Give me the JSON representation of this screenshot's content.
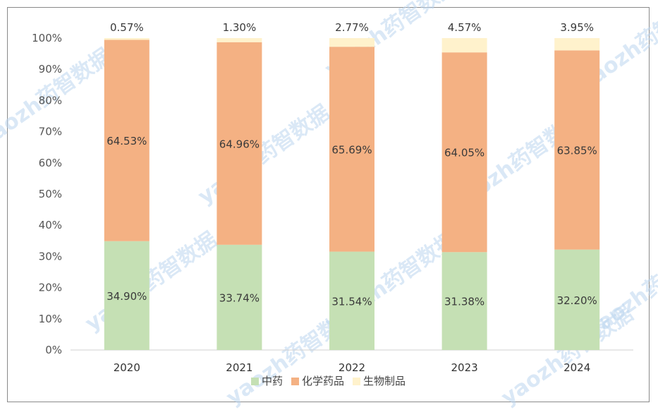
{
  "chart_data": {
    "type": "bar",
    "stacked": true,
    "percent_stacked": true,
    "categories": [
      "2020",
      "2021",
      "2022",
      "2023",
      "2024"
    ],
    "series": [
      {
        "name": "中药",
        "color": "#c5e0b4",
        "values": [
          34.9,
          33.74,
          31.54,
          31.38,
          32.2
        ],
        "labels": [
          "34.90%",
          "33.74%",
          "31.54%",
          "31.38%",
          "32.20%"
        ]
      },
      {
        "name": "化学药品",
        "color": "#f4b183",
        "values": [
          64.53,
          64.96,
          65.69,
          64.05,
          63.85
        ],
        "labels": [
          "64.53%",
          "64.96%",
          "65.69%",
          "64.05%",
          "63.85%"
        ]
      },
      {
        "name": "生物制品",
        "color": "#fff2cc",
        "values": [
          0.57,
          1.3,
          2.77,
          4.57,
          3.95
        ],
        "labels": [
          "0.57%",
          "1.30%",
          "2.77%",
          "4.57%",
          "3.95%"
        ]
      }
    ],
    "yticks": [
      "0%",
      "10%",
      "20%",
      "30%",
      "40%",
      "50%",
      "60%",
      "70%",
      "80%",
      "90%",
      "100%"
    ],
    "ylim": [
      0,
      100
    ],
    "grid": false,
    "legend_position": "bottom",
    "title": "",
    "xlabel": "",
    "ylabel": ""
  },
  "watermark": "yaozh药智数据"
}
